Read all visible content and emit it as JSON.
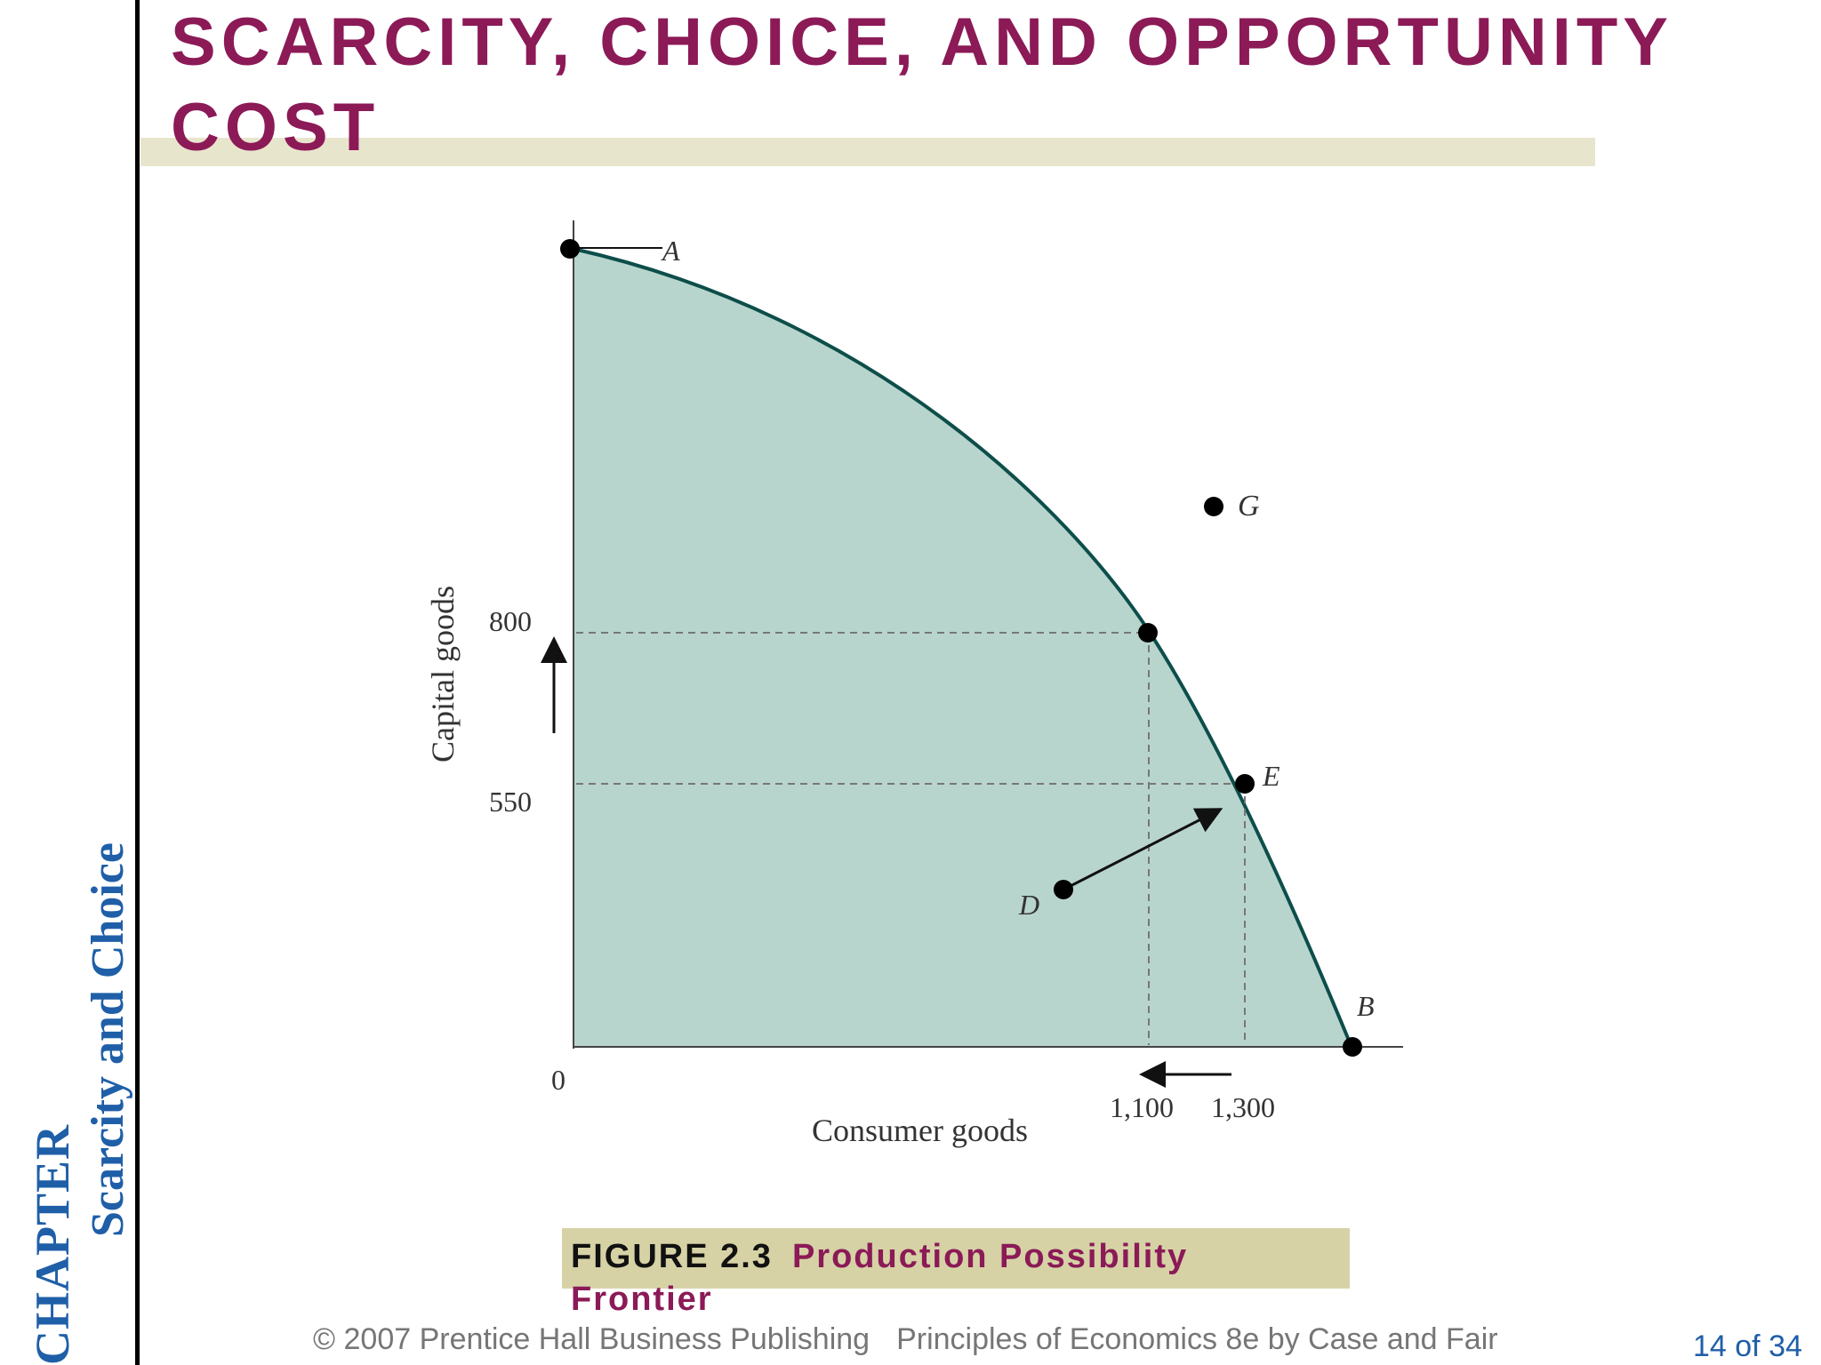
{
  "slide": {
    "title": "SCARCITY, CHOICE, AND OPPORTUNITY COST",
    "side_chapter": "CHAPTER",
    "side_subtitle": "Scarcity and Choice",
    "footer_copyright": "© 2007 Prentice Hall Business Publishing",
    "footer_book": "Principles of Economics 8e by Case and Fair",
    "page_number": "14 of 34",
    "colors": {
      "title": "#8b1a57",
      "side_text": "#1f5fa8",
      "frontier_fill": "#b8d5cd",
      "frontier_line": "#0d4e4a",
      "caption_box": "#d6d2a6",
      "title_band": "#e8e5cd"
    }
  },
  "figure": {
    "label": "FIGURE 2.3",
    "title": "Production Possibility Frontier"
  },
  "chart_data": {
    "type": "production-possibility-frontier",
    "xlabel": "Consumer goods",
    "ylabel": "Capital goods",
    "origin_label": "0",
    "x_ticks": [
      "1,100",
      "1,300"
    ],
    "y_ticks": [
      "800",
      "550"
    ],
    "points": [
      {
        "label": "A",
        "x": 0,
        "y": null,
        "note": "on frontier, y-axis intercept"
      },
      {
        "label": "",
        "x": 1100,
        "y": 800,
        "note": "on frontier"
      },
      {
        "label": "E",
        "x": 1300,
        "y": 550,
        "note": "on frontier"
      },
      {
        "label": "B",
        "x": null,
        "y": 0,
        "note": "on frontier, x-axis intercept"
      },
      {
        "label": "D",
        "x": null,
        "y": null,
        "note": "inside frontier"
      },
      {
        "label": "G",
        "x": null,
        "y": null,
        "note": "outside frontier (unattainable)"
      }
    ],
    "arrows": [
      {
        "from": "D",
        "to": "E"
      },
      {
        "direction": "up",
        "axis": "y"
      },
      {
        "direction": "left",
        "axis": "x"
      }
    ]
  }
}
